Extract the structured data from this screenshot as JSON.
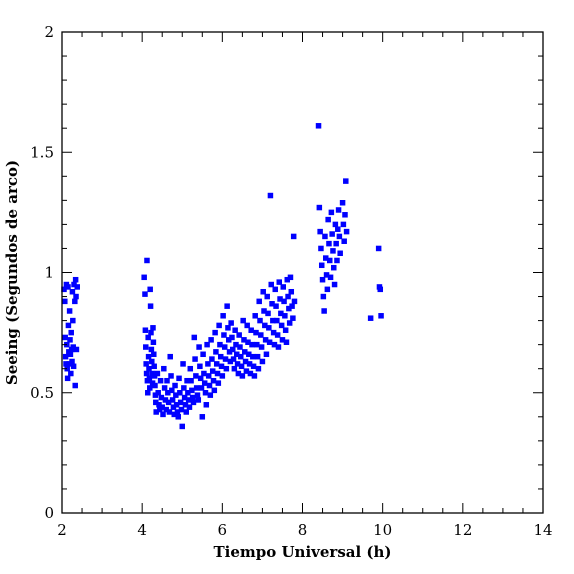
{
  "chart_data": {
    "type": "scatter",
    "title": "",
    "xlabel": "Tiempo Universal (h)",
    "ylabel": "Seeing (Segundos de arco)",
    "xlim": [
      2,
      14
    ],
    "ylim": [
      0,
      2
    ],
    "x_ticks": [
      "2",
      "4",
      "6",
      "8",
      "10",
      "12",
      "14"
    ],
    "y_ticks": [
      "0",
      "0.5",
      "1",
      "1.5",
      "2"
    ],
    "grid": false,
    "legend": "none",
    "marker_color": "#0000ff",
    "points": [
      [
        2.05,
        0.93
      ],
      [
        2.07,
        0.88
      ],
      [
        2.08,
        0.73
      ],
      [
        2.09,
        0.65
      ],
      [
        2.1,
        0.62
      ],
      [
        2.11,
        0.95
      ],
      [
        2.12,
        0.7
      ],
      [
        2.13,
        0.6
      ],
      [
        2.14,
        0.56
      ],
      [
        2.15,
        0.94
      ],
      [
        2.16,
        0.78
      ],
      [
        2.17,
        0.67
      ],
      [
        2.18,
        0.62
      ],
      [
        2.19,
        0.84
      ],
      [
        2.2,
        0.72
      ],
      [
        2.21,
        0.66
      ],
      [
        2.22,
        0.58
      ],
      [
        2.23,
        0.75
      ],
      [
        2.24,
        0.68
      ],
      [
        2.25,
        0.63
      ],
      [
        2.26,
        0.92
      ],
      [
        2.27,
        0.8
      ],
      [
        2.28,
        0.69
      ],
      [
        2.29,
        0.61
      ],
      [
        2.3,
        0.95
      ],
      [
        2.32,
        0.88
      ],
      [
        2.33,
        0.53
      ],
      [
        2.34,
        0.97
      ],
      [
        2.35,
        0.9
      ],
      [
        2.36,
        0.68
      ],
      [
        2.38,
        0.94
      ],
      [
        4.05,
        0.98
      ],
      [
        4.07,
        0.91
      ],
      [
        4.08,
        0.76
      ],
      [
        4.09,
        0.69
      ],
      [
        4.1,
        0.62
      ],
      [
        4.11,
        0.58
      ],
      [
        4.12,
        1.05
      ],
      [
        4.13,
        0.55
      ],
      [
        4.14,
        0.5
      ],
      [
        4.15,
        0.73
      ],
      [
        4.16,
        0.65
      ],
      [
        4.17,
        0.6
      ],
      [
        4.18,
        0.56
      ],
      [
        4.19,
        0.52
      ],
      [
        4.2,
        0.93
      ],
      [
        4.21,
        0.86
      ],
      [
        4.22,
        0.75
      ],
      [
        4.23,
        0.68
      ],
      [
        4.24,
        0.63
      ],
      [
        4.25,
        0.58
      ],
      [
        4.26,
        0.54
      ],
      [
        4.27,
        0.77
      ],
      [
        4.28,
        0.71
      ],
      [
        4.29,
        0.66
      ],
      [
        4.3,
        0.61
      ],
      [
        4.31,
        0.57
      ],
      [
        4.32,
        0.53
      ],
      [
        4.33,
        0.49
      ],
      [
        4.34,
        0.46
      ],
      [
        4.35,
        0.42
      ],
      [
        4.38,
        0.58
      ],
      [
        4.4,
        0.5
      ],
      [
        4.42,
        0.45
      ],
      [
        4.44,
        0.43
      ],
      [
        4.46,
        0.55
      ],
      [
        4.48,
        0.48
      ],
      [
        4.5,
        0.44
      ],
      [
        4.52,
        0.41
      ],
      [
        4.54,
        0.6
      ],
      [
        4.56,
        0.52
      ],
      [
        4.58,
        0.47
      ],
      [
        4.6,
        0.43
      ],
      [
        4.62,
        0.55
      ],
      [
        4.64,
        0.5
      ],
      [
        4.66,
        0.46
      ],
      [
        4.68,
        0.42
      ],
      [
        4.7,
        0.65
      ],
      [
        4.72,
        0.57
      ],
      [
        4.74,
        0.51
      ],
      [
        4.76,
        0.47
      ],
      [
        4.78,
        0.44
      ],
      [
        4.8,
        0.41
      ],
      [
        4.82,
        0.53
      ],
      [
        4.84,
        0.49
      ],
      [
        4.86,
        0.45
      ],
      [
        4.88,
        0.42
      ],
      [
        4.9,
        0.4
      ],
      [
        4.92,
        0.56
      ],
      [
        4.94,
        0.5
      ],
      [
        4.96,
        0.46
      ],
      [
        4.98,
        0.43
      ],
      [
        5.0,
        0.36
      ],
      [
        5.02,
        0.62
      ],
      [
        5.04,
        0.52
      ],
      [
        5.06,
        0.48
      ],
      [
        5.08,
        0.45
      ],
      [
        5.1,
        0.42
      ],
      [
        5.12,
        0.55
      ],
      [
        5.14,
        0.5
      ],
      [
        5.16,
        0.47
      ],
      [
        5.18,
        0.44
      ],
      [
        5.2,
        0.6
      ],
      [
        5.22,
        0.55
      ],
      [
        5.24,
        0.51
      ],
      [
        5.26,
        0.48
      ],
      [
        5.28,
        0.46
      ],
      [
        5.3,
        0.73
      ],
      [
        5.32,
        0.64
      ],
      [
        5.34,
        0.57
      ],
      [
        5.36,
        0.52
      ],
      [
        5.38,
        0.49
      ],
      [
        5.4,
        0.47
      ],
      [
        5.42,
        0.69
      ],
      [
        5.44,
        0.61
      ],
      [
        5.46,
        0.56
      ],
      [
        5.48,
        0.52
      ],
      [
        5.5,
        0.4
      ],
      [
        5.52,
        0.66
      ],
      [
        5.54,
        0.58
      ],
      [
        5.56,
        0.54
      ],
      [
        5.58,
        0.5
      ],
      [
        5.6,
        0.45
      ],
      [
        5.62,
        0.7
      ],
      [
        5.64,
        0.62
      ],
      [
        5.66,
        0.57
      ],
      [
        5.68,
        0.53
      ],
      [
        5.7,
        0.49
      ],
      [
        5.72,
        0.72
      ],
      [
        5.74,
        0.64
      ],
      [
        5.76,
        0.59
      ],
      [
        5.78,
        0.55
      ],
      [
        5.8,
        0.51
      ],
      [
        5.82,
        0.75
      ],
      [
        5.84,
        0.67
      ],
      [
        5.86,
        0.62
      ],
      [
        5.88,
        0.58
      ],
      [
        5.9,
        0.54
      ],
      [
        5.92,
        0.78
      ],
      [
        5.94,
        0.7
      ],
      [
        5.96,
        0.65
      ],
      [
        5.98,
        0.61
      ],
      [
        6.0,
        0.57
      ],
      [
        6.02,
        0.82
      ],
      [
        6.04,
        0.74
      ],
      [
        6.06,
        0.69
      ],
      [
        6.08,
        0.64
      ],
      [
        6.1,
        0.6
      ],
      [
        6.12,
        0.86
      ],
      [
        6.14,
        0.77
      ],
      [
        6.16,
        0.72
      ],
      [
        6.18,
        0.67
      ],
      [
        6.2,
        0.63
      ],
      [
        6.22,
        0.79
      ],
      [
        6.24,
        0.73
      ],
      [
        6.26,
        0.68
      ],
      [
        6.28,
        0.64
      ],
      [
        6.3,
        0.6
      ],
      [
        6.32,
        0.76
      ],
      [
        6.34,
        0.7
      ],
      [
        6.36,
        0.66
      ],
      [
        6.38,
        0.62
      ],
      [
        6.4,
        0.58
      ],
      [
        6.42,
        0.74
      ],
      [
        6.44,
        0.69
      ],
      [
        6.46,
        0.65
      ],
      [
        6.48,
        0.61
      ],
      [
        6.5,
        0.57
      ],
      [
        6.52,
        0.8
      ],
      [
        6.54,
        0.72
      ],
      [
        6.56,
        0.67
      ],
      [
        6.58,
        0.63
      ],
      [
        6.6,
        0.59
      ],
      [
        6.62,
        0.78
      ],
      [
        6.64,
        0.71
      ],
      [
        6.66,
        0.66
      ],
      [
        6.68,
        0.62
      ],
      [
        6.7,
        0.58
      ],
      [
        6.72,
        0.76
      ],
      [
        6.74,
        0.7
      ],
      [
        6.76,
        0.65
      ],
      [
        6.78,
        0.61
      ],
      [
        6.8,
        0.57
      ],
      [
        6.82,
        0.82
      ],
      [
        6.84,
        0.75
      ],
      [
        6.86,
        0.7
      ],
      [
        6.88,
        0.65
      ],
      [
        6.9,
        0.6
      ],
      [
        6.92,
        0.88
      ],
      [
        6.94,
        0.8
      ],
      [
        6.96,
        0.74
      ],
      [
        6.98,
        0.69
      ],
      [
        7.0,
        0.63
      ],
      [
        7.02,
        0.92
      ],
      [
        7.04,
        0.84
      ],
      [
        7.06,
        0.78
      ],
      [
        7.08,
        0.72
      ],
      [
        7.1,
        0.66
      ],
      [
        7.12,
        0.9
      ],
      [
        7.14,
        0.83
      ],
      [
        7.16,
        0.77
      ],
      [
        7.18,
        0.71
      ],
      [
        7.2,
        1.32
      ],
      [
        7.22,
        0.95
      ],
      [
        7.24,
        0.87
      ],
      [
        7.26,
        0.8
      ],
      [
        7.28,
        0.75
      ],
      [
        7.3,
        0.7
      ],
      [
        7.32,
        0.93
      ],
      [
        7.34,
        0.86
      ],
      [
        7.36,
        0.8
      ],
      [
        7.38,
        0.74
      ],
      [
        7.4,
        0.69
      ],
      [
        7.42,
        0.96
      ],
      [
        7.44,
        0.89
      ],
      [
        7.46,
        0.83
      ],
      [
        7.48,
        0.78
      ],
      [
        7.5,
        0.72
      ],
      [
        7.52,
        0.94
      ],
      [
        7.54,
        0.88
      ],
      [
        7.56,
        0.82
      ],
      [
        7.58,
        0.76
      ],
      [
        7.6,
        0.71
      ],
      [
        7.62,
        0.97
      ],
      [
        7.64,
        0.9
      ],
      [
        7.66,
        0.85
      ],
      [
        7.68,
        0.79
      ],
      [
        7.7,
        0.98
      ],
      [
        7.72,
        0.92
      ],
      [
        7.74,
        0.86
      ],
      [
        7.76,
        0.81
      ],
      [
        7.78,
        1.15
      ],
      [
        7.8,
        0.88
      ],
      [
        8.4,
        1.61
      ],
      [
        8.42,
        1.27
      ],
      [
        8.44,
        1.17
      ],
      [
        8.46,
        1.1
      ],
      [
        8.48,
        1.03
      ],
      [
        8.5,
        0.97
      ],
      [
        8.52,
        0.9
      ],
      [
        8.54,
        0.84
      ],
      [
        8.56,
        1.15
      ],
      [
        8.58,
        1.06
      ],
      [
        8.6,
        0.99
      ],
      [
        8.62,
        0.93
      ],
      [
        8.64,
        1.22
      ],
      [
        8.66,
        1.12
      ],
      [
        8.68,
        1.05
      ],
      [
        8.7,
        0.98
      ],
      [
        8.72,
        1.25
      ],
      [
        8.74,
        1.16
      ],
      [
        8.76,
        1.09
      ],
      [
        8.78,
        1.02
      ],
      [
        8.8,
        0.95
      ],
      [
        8.82,
        1.2
      ],
      [
        8.84,
        1.12
      ],
      [
        8.86,
        1.05
      ],
      [
        8.88,
        1.18
      ],
      [
        8.9,
        1.26
      ],
      [
        8.92,
        1.15
      ],
      [
        8.94,
        1.08
      ],
      [
        9.0,
        1.29
      ],
      [
        9.02,
        1.2
      ],
      [
        9.04,
        1.13
      ],
      [
        9.06,
        1.24
      ],
      [
        9.08,
        1.38
      ],
      [
        9.1,
        1.17
      ],
      [
        9.7,
        0.81
      ],
      [
        9.9,
        1.1
      ],
      [
        9.92,
        0.94
      ],
      [
        9.94,
        0.93
      ],
      [
        9.96,
        0.82
      ]
    ]
  }
}
